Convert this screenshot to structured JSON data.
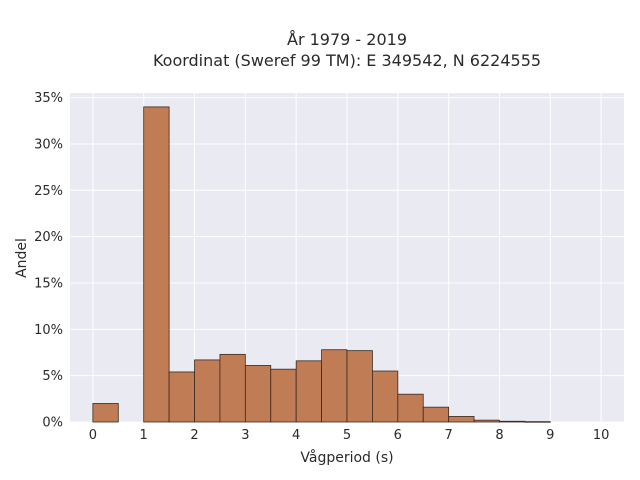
{
  "chart_data": {
    "type": "bar",
    "title_lines": [
      "År 1979 - 2019",
      "Koordinat (Sweref 99 TM): E 349542, N 6224555"
    ],
    "xlabel": "Vågperiod (s)",
    "ylabel": "Andel",
    "xlim": [
      -0.45,
      10.45
    ],
    "ylim": [
      0,
      0.355
    ],
    "x_ticks": [
      0,
      1,
      2,
      3,
      4,
      5,
      6,
      7,
      8,
      9,
      10
    ],
    "y_ticks": [
      0,
      0.05,
      0.1,
      0.15,
      0.2,
      0.25,
      0.3,
      0.35
    ],
    "y_tick_labels": [
      "0%",
      "5%",
      "10%",
      "15%",
      "20%",
      "25%",
      "30%",
      "35%"
    ],
    "grid": true,
    "bin_width": 0.5,
    "bins": [
      {
        "start": 0.0,
        "value": 0.02
      },
      {
        "start": 0.5,
        "value": 0.0
      },
      {
        "start": 1.0,
        "value": 0.34
      },
      {
        "start": 1.5,
        "value": 0.054
      },
      {
        "start": 2.0,
        "value": 0.067
      },
      {
        "start": 2.5,
        "value": 0.073
      },
      {
        "start": 3.0,
        "value": 0.061
      },
      {
        "start": 3.5,
        "value": 0.057
      },
      {
        "start": 4.0,
        "value": 0.066
      },
      {
        "start": 4.5,
        "value": 0.078
      },
      {
        "start": 5.0,
        "value": 0.077
      },
      {
        "start": 5.5,
        "value": 0.055
      },
      {
        "start": 6.0,
        "value": 0.03
      },
      {
        "start": 6.5,
        "value": 0.016
      },
      {
        "start": 7.0,
        "value": 0.006
      },
      {
        "start": 7.5,
        "value": 0.002
      },
      {
        "start": 8.0,
        "value": 0.0008
      },
      {
        "start": 8.5,
        "value": 0.0004
      }
    ],
    "colors": {
      "bar": "#c07c55",
      "bar_edge": "#3b2a20",
      "plot_bg": "#eaeaf2",
      "grid": "#ffffff"
    }
  }
}
